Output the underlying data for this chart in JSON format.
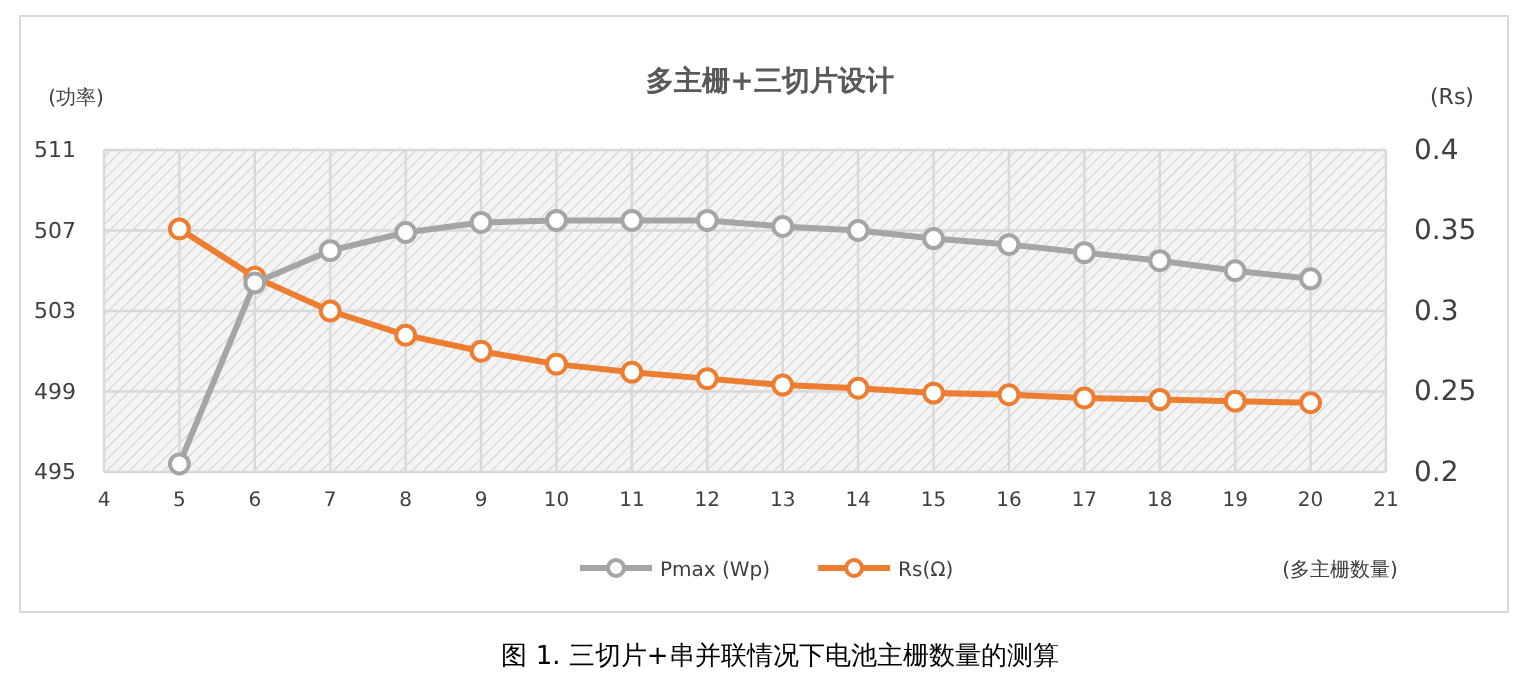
{
  "chart_data": {
    "type": "line",
    "title": "多主栅+三切片设计",
    "xlabel": "(多主栅数量)",
    "ylabel": "(功率)",
    "y2label": "(Rs)",
    "annotations": [
      "图 1. 三切片+串并联情况下电池主栅数量的测算"
    ],
    "x": [
      5,
      6,
      7,
      8,
      9,
      10,
      11,
      12,
      13,
      14,
      15,
      16,
      17,
      18,
      19,
      20
    ],
    "series": [
      {
        "name": "Pmax (Wp)",
        "color": "#a5a5a5",
        "values": [
          495.4,
          504.4,
          506.0,
          506.9,
          507.4,
          507.5,
          507.5,
          507.5,
          507.2,
          507.0,
          506.6,
          506.3,
          505.9,
          505.5,
          505.0,
          504.6
        ]
      },
      {
        "name": "Rs(Ω)",
        "color": "#ed7d31",
        "axis": "y2",
        "values": [
          0.351,
          0.321,
          0.3,
          0.285,
          0.275,
          0.267,
          0.262,
          0.258,
          0.254,
          0.252,
          0.249,
          0.248,
          0.246,
          0.245,
          0.244,
          0.243
        ]
      }
    ],
    "xlim": [
      4,
      21
    ],
    "xticks": [
      4,
      5,
      6,
      7,
      8,
      9,
      10,
      11,
      12,
      13,
      14,
      15,
      16,
      17,
      18,
      19,
      20,
      21
    ],
    "ylim": [
      495,
      511
    ],
    "yticks": [
      495,
      499,
      503,
      507,
      511
    ],
    "y2lim": [
      0.2,
      0.4
    ],
    "y2ticks": [
      0.2,
      0.25,
      0.3,
      0.35,
      0.4
    ],
    "grid": true,
    "legend": "bottom",
    "marker": "circle",
    "line_style": "solid"
  }
}
